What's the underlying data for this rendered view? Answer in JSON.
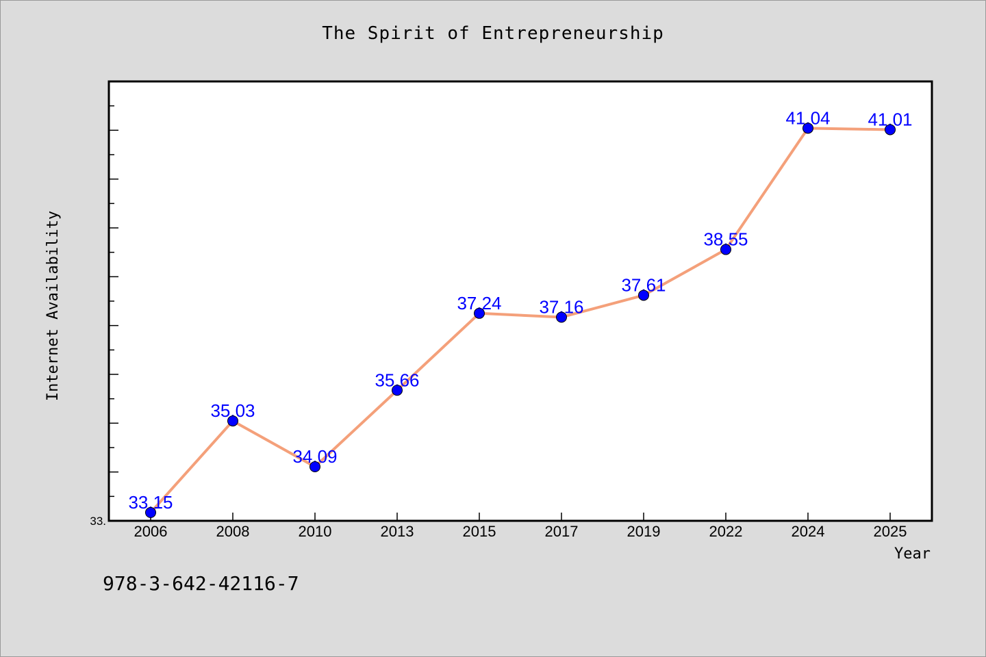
{
  "page": {
    "background": "#dcdcdc",
    "isbn": "978-3-642-42116-7"
  },
  "chart_data": {
    "type": "line",
    "title": "The Spirit of Entrepreneurship",
    "xlabel": "Year",
    "ylabel": "Internet Availability",
    "categories": [
      "2006",
      "2008",
      "2010",
      "2013",
      "2015",
      "2017",
      "2019",
      "2022",
      "2024",
      "2025"
    ],
    "series": [
      {
        "values": [
          33.15,
          35.03,
          34.09,
          35.66,
          37.24,
          37.16,
          37.61,
          38.55,
          41.04,
          41.01
        ],
        "labels": [
          "33.15",
          "35.03",
          "34.09",
          "35.66",
          "37.24",
          "37.16",
          "37.61",
          "38.55",
          "41.04",
          "41.01"
        ],
        "line_color": "#f4a07a",
        "marker_color": "#0000ff",
        "label_color": "#0000ff"
      }
    ],
    "ylim": [
      32.98,
      42.0
    ],
    "y_min_tick_label": "33.",
    "grid": false,
    "legend": "none"
  }
}
